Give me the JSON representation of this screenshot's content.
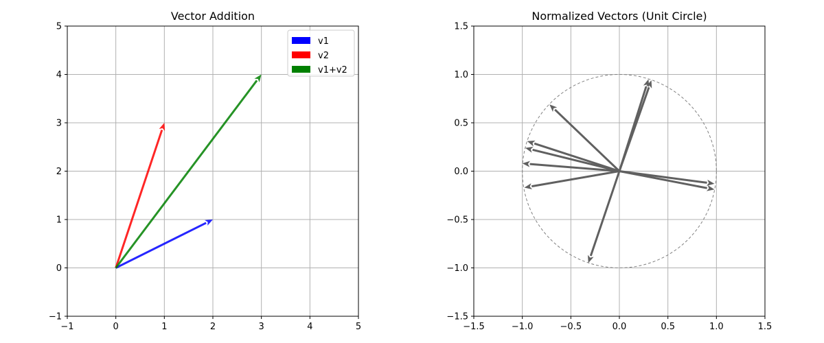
{
  "chart_data": [
    {
      "type": "vector",
      "title": "Vector Addition",
      "xlim": [
        -1,
        5
      ],
      "ylim": [
        -1,
        5
      ],
      "xticks": [
        -1,
        0,
        1,
        2,
        3,
        4,
        5
      ],
      "yticks": [
        -1,
        0,
        1,
        2,
        3,
        4,
        5
      ],
      "xtick_labels": [
        "−1",
        "0",
        "1",
        "2",
        "3",
        "4",
        "5"
      ],
      "ytick_labels": [
        "−1",
        "0",
        "1",
        "2",
        "3",
        "4",
        "5"
      ],
      "grid": true,
      "legend": "top-right",
      "series": [
        {
          "name": "v1",
          "color": "#0000ff",
          "origin": [
            0,
            0
          ],
          "vector": [
            2,
            1
          ]
        },
        {
          "name": "v2",
          "color": "#ff0000",
          "origin": [
            0,
            0
          ],
          "vector": [
            1,
            3
          ]
        },
        {
          "name": "v1+v2",
          "color": "#008000",
          "origin": [
            0,
            0
          ],
          "vector": [
            3,
            4
          ]
        }
      ]
    },
    {
      "type": "vector",
      "title": "Normalized Vectors (Unit Circle)",
      "xlim": [
        -1.5,
        1.5
      ],
      "ylim": [
        -1.5,
        1.5
      ],
      "xticks": [
        -1.5,
        -1.0,
        -0.5,
        0.0,
        0.5,
        1.0,
        1.5
      ],
      "yticks": [
        -1.5,
        -1.0,
        -0.5,
        0.0,
        0.5,
        1.0,
        1.5
      ],
      "xtick_labels": [
        "−1.5",
        "−1.0",
        "−0.5",
        "0.0",
        "0.5",
        "1.0",
        "1.5"
      ],
      "ytick_labels": [
        "−1.5",
        "−1.0",
        "−0.5",
        "0.0",
        "0.5",
        "1.0",
        "1.5"
      ],
      "grid": true,
      "unit_circle": true,
      "arrow_color": "#606060",
      "vectors": [
        [
          0.3,
          0.95
        ],
        [
          0.33,
          0.94
        ],
        [
          -0.72,
          0.69
        ],
        [
          -0.95,
          0.31
        ],
        [
          -0.97,
          0.24
        ],
        [
          -1.0,
          0.08
        ],
        [
          -0.98,
          -0.17
        ],
        [
          0.98,
          -0.13
        ],
        [
          0.98,
          -0.19
        ],
        [
          -0.32,
          -0.95
        ]
      ]
    }
  ]
}
